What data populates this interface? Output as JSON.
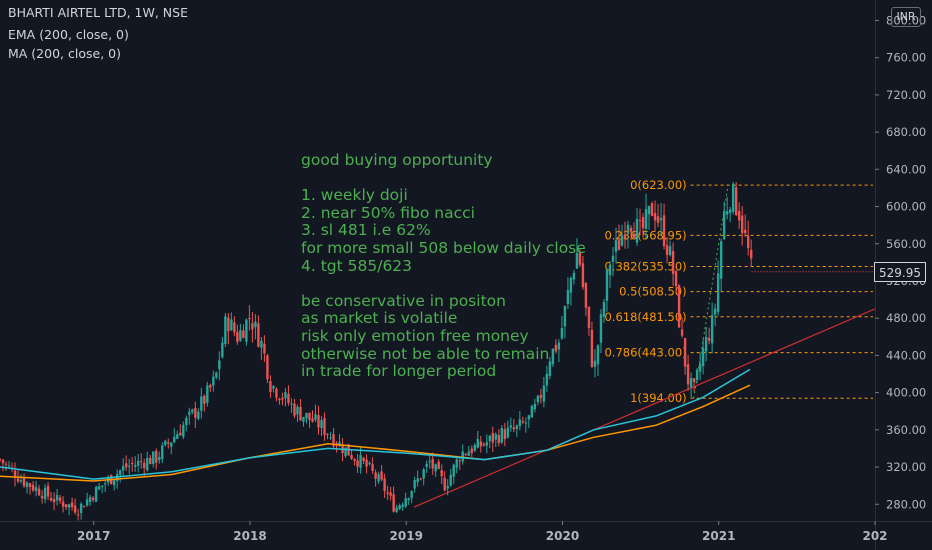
{
  "header": {
    "symbol": "BHARTI AIRTEL LTD, 1W, NSE",
    "indicator1": "EMA (200, close, 0)",
    "indicator2": "MA (200, close, 0)",
    "currency": "INR"
  },
  "price_badge": "529.95",
  "annotation": [
    "good buying opportunity",
    "",
    "1. weekly doji",
    "2. near 50% fibo nacci",
    "3. sl 481 i.e 62%",
    "for more small 508 below daily close",
    "4. tgt 585/623",
    "",
    "be conservative in positon",
    "as market is volatile",
    "risk only emotion free money",
    "otherwise not be able to remain",
    "in trade for longer period"
  ],
  "colors": {
    "background": "#131722",
    "up": "#26a69a",
    "down": "#ef5350",
    "ema": "#26c6da",
    "ma": "#ff9800",
    "fib": "#ff9800",
    "trendline": "#d32f2f",
    "annotation": "#4caf50"
  },
  "chart_data": {
    "type": "candlestick",
    "x_ticks": [
      "2017",
      "2018",
      "2019",
      "2020",
      "2021",
      "202"
    ],
    "y_ticks": [
      "800.00",
      "760.00",
      "720.00",
      "680.00",
      "640.00",
      "600.00",
      "560.00",
      "520.00",
      "480.00",
      "440.00",
      "400.00",
      "360.00",
      "320.00",
      "280.00"
    ],
    "ylim": [
      262,
      822
    ],
    "xlim": [
      2016.4,
      2022.0
    ],
    "last_close": 529.95,
    "fib_levels": [
      {
        "label": "0(623.00)",
        "value": 623
      },
      {
        "label": "0.236(568.95)",
        "value": 568.95
      },
      {
        "label": "0.382(535.50)",
        "value": 535.5
      },
      {
        "label": "0.5(508.50)",
        "value": 508.5
      },
      {
        "label": "0.618(481.50)",
        "value": 481.5
      },
      {
        "label": "0.786(443.00)",
        "value": 443
      },
      {
        "label": "1(394.00)",
        "value": 394
      }
    ],
    "key_points": [
      {
        "t": 2016.4,
        "p": 328
      },
      {
        "t": 2016.55,
        "p": 305
      },
      {
        "t": 2016.75,
        "p": 285
      },
      {
        "t": 2016.9,
        "p": 275
      },
      {
        "t": 2017.05,
        "p": 300
      },
      {
        "t": 2017.2,
        "p": 320
      },
      {
        "t": 2017.4,
        "p": 330
      },
      {
        "t": 2017.55,
        "p": 360
      },
      {
        "t": 2017.7,
        "p": 390
      },
      {
        "t": 2017.78,
        "p": 415
      },
      {
        "t": 2017.85,
        "p": 480
      },
      {
        "t": 2017.92,
        "p": 460
      },
      {
        "t": 2018.0,
        "p": 482
      },
      {
        "t": 2018.08,
        "p": 450
      },
      {
        "t": 2018.13,
        "p": 410
      },
      {
        "t": 2018.3,
        "p": 380
      },
      {
        "t": 2018.45,
        "p": 365
      },
      {
        "t": 2018.6,
        "p": 340
      },
      {
        "t": 2018.75,
        "p": 320
      },
      {
        "t": 2018.85,
        "p": 300
      },
      {
        "t": 2018.93,
        "p": 275
      },
      {
        "t": 2019.05,
        "p": 300
      },
      {
        "t": 2019.15,
        "p": 325
      },
      {
        "t": 2019.25,
        "p": 300
      },
      {
        "t": 2019.35,
        "p": 335
      },
      {
        "t": 2019.5,
        "p": 345
      },
      {
        "t": 2019.6,
        "p": 355
      },
      {
        "t": 2019.7,
        "p": 360
      },
      {
        "t": 2019.78,
        "p": 370
      },
      {
        "t": 2019.85,
        "p": 390
      },
      {
        "t": 2019.92,
        "p": 440
      },
      {
        "t": 2019.98,
        "p": 455
      },
      {
        "t": 2020.05,
        "p": 520
      },
      {
        "t": 2020.1,
        "p": 555
      },
      {
        "t": 2020.13,
        "p": 515
      },
      {
        "t": 2020.2,
        "p": 420
      },
      {
        "t": 2020.25,
        "p": 480
      },
      {
        "t": 2020.3,
        "p": 540
      },
      {
        "t": 2020.36,
        "p": 560
      },
      {
        "t": 2020.42,
        "p": 590
      },
      {
        "t": 2020.5,
        "p": 570
      },
      {
        "t": 2020.58,
        "p": 600
      },
      {
        "t": 2020.64,
        "p": 575
      },
      {
        "t": 2020.7,
        "p": 540
      },
      {
        "t": 2020.76,
        "p": 460
      },
      {
        "t": 2020.8,
        "p": 415
      },
      {
        "t": 2020.84,
        "p": 400
      },
      {
        "t": 2020.9,
        "p": 445
      },
      {
        "t": 2020.97,
        "p": 480
      },
      {
        "t": 2021.03,
        "p": 590
      },
      {
        "t": 2021.08,
        "p": 615
      },
      {
        "t": 2021.13,
        "p": 595
      },
      {
        "t": 2021.19,
        "p": 550
      },
      {
        "t": 2021.21,
        "p": 529.95
      }
    ],
    "ema_points": [
      {
        "t": 2016.4,
        "p": 320
      },
      {
        "t": 2017.0,
        "p": 307
      },
      {
        "t": 2017.5,
        "p": 315
      },
      {
        "t": 2018.0,
        "p": 330
      },
      {
        "t": 2018.5,
        "p": 340
      },
      {
        "t": 2019.0,
        "p": 335
      },
      {
        "t": 2019.5,
        "p": 328
      },
      {
        "t": 2019.9,
        "p": 338
      },
      {
        "t": 2020.2,
        "p": 360
      },
      {
        "t": 2020.6,
        "p": 375
      },
      {
        "t": 2020.9,
        "p": 395
      },
      {
        "t": 2021.2,
        "p": 425
      }
    ],
    "ma_points": [
      {
        "t": 2016.4,
        "p": 310
      },
      {
        "t": 2017.0,
        "p": 305
      },
      {
        "t": 2017.5,
        "p": 312
      },
      {
        "t": 2018.0,
        "p": 330
      },
      {
        "t": 2018.5,
        "p": 345
      },
      {
        "t": 2019.0,
        "p": 337
      },
      {
        "t": 2019.5,
        "p": 328
      },
      {
        "t": 2019.9,
        "p": 338
      },
      {
        "t": 2020.2,
        "p": 352
      },
      {
        "t": 2020.6,
        "p": 365
      },
      {
        "t": 2020.9,
        "p": 385
      },
      {
        "t": 2021.2,
        "p": 408
      }
    ],
    "trendline": [
      {
        "t": 2019.05,
        "p": 277
      },
      {
        "t": 2022.0,
        "p": 490
      }
    ]
  }
}
